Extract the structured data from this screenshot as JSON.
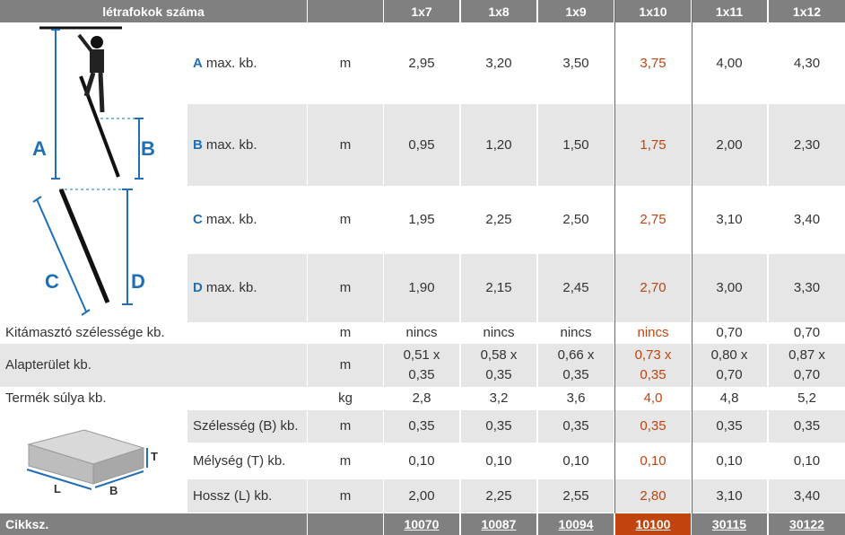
{
  "header": {
    "label": "létrafokok száma",
    "sizes": [
      "1x7",
      "1x8",
      "1x9",
      "1x10",
      "1x11",
      "1x12"
    ]
  },
  "highlight_color": "#c1440e",
  "label_color": "#1f6fb5",
  "ladder_rows": [
    {
      "letter": "A",
      "text": "max. kb.",
      "unit": "m",
      "values": [
        "2,95",
        "3,20",
        "3,50",
        "3,75",
        "4,00",
        "4,30"
      ]
    },
    {
      "letter": "B",
      "text": "max. kb.",
      "unit": "m",
      "values": [
        "0,95",
        "1,20",
        "1,50",
        "1,75",
        "2,00",
        "2,30"
      ]
    },
    {
      "letter": "C",
      "text": "max. kb.",
      "unit": "m",
      "values": [
        "1,95",
        "2,25",
        "2,50",
        "2,75",
        "3,10",
        "3,40"
      ]
    },
    {
      "letter": "D",
      "text": "max. kb.",
      "unit": "m",
      "values": [
        "1,90",
        "2,15",
        "2,45",
        "2,70",
        "3,00",
        "3,30"
      ]
    }
  ],
  "rows": [
    {
      "label": "Kitámasztó szélessége kb.",
      "unit": "m",
      "values": [
        "nincs",
        "nincs",
        "nincs",
        "nincs",
        "0,70",
        "0,70"
      ]
    },
    {
      "label": "Alapterület kb.",
      "unit": "m",
      "values": [
        [
          "0,51 x",
          "0,35"
        ],
        [
          "0,58 x",
          "0,35"
        ],
        [
          "0,66 x",
          "0,35"
        ],
        [
          "0,73 x",
          "0,35"
        ],
        [
          "0,80 x",
          "0,70"
        ],
        [
          "0,87 x",
          "0,70"
        ]
      ]
    },
    {
      "label": "Termék súlya kb.",
      "unit": "kg",
      "values": [
        "2,8",
        "3,2",
        "3,6",
        "4,0",
        "4,8",
        "5,2"
      ]
    }
  ],
  "pack_rows": [
    {
      "label": "Szélesség (B) kb.",
      "unit": "m",
      "values": [
        "0,35",
        "0,35",
        "0,35",
        "0,35",
        "0,35",
        "0,35"
      ]
    },
    {
      "label": "Mélység (T) kb.",
      "unit": "m",
      "values": [
        "0,10",
        "0,10",
        "0,10",
        "0,10",
        "0,10",
        "0,10"
      ]
    },
    {
      "label": "Hossz (L) kb.",
      "unit": "m",
      "values": [
        "2,00",
        "2,25",
        "2,55",
        "2,80",
        "3,10",
        "3,40"
      ]
    }
  ],
  "footer": {
    "label": "Cikksz.",
    "codes": [
      "10070",
      "10087",
      "10094",
      "10100",
      "30115",
      "30122"
    ]
  },
  "diagram": {
    "letters": [
      "A",
      "B",
      "C",
      "D"
    ]
  },
  "box": {
    "letters": [
      "T",
      "L",
      "B"
    ]
  }
}
